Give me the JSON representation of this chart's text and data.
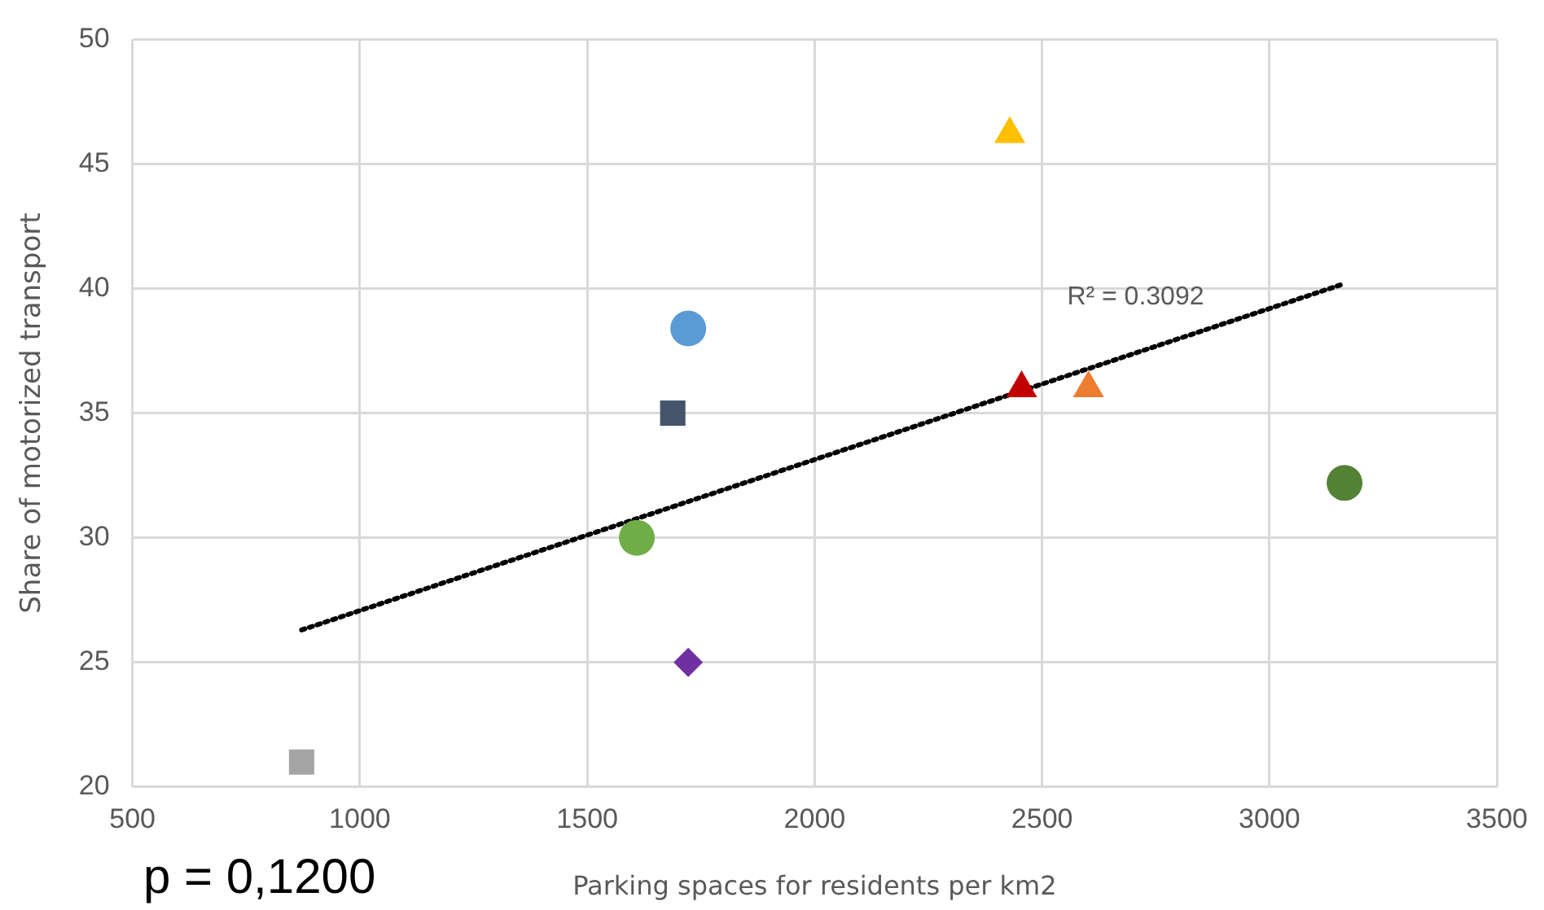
{
  "chart_data": {
    "type": "scatter",
    "xlabel": "Parking spaces for residents per km2",
    "ylabel": "Share of motorized transport",
    "xlim": [
      500,
      3500
    ],
    "xticks": [
      500,
      1000,
      1500,
      2000,
      2500,
      3000,
      3500
    ],
    "ylim": [
      20,
      50
    ],
    "yticks": [
      20,
      25,
      30,
      35,
      40,
      45,
      50
    ],
    "grid": true,
    "legend": false,
    "series": [
      {
        "color": "#a5a5a5",
        "marker": "square",
        "x": [
          872
        ],
        "values": [
          21
        ]
      },
      {
        "color": "#7030a0",
        "marker": "diamond",
        "x": [
          1722
        ],
        "values": [
          25
        ]
      },
      {
        "color": "#70ad47",
        "marker": "circle",
        "x": [
          1609
        ],
        "values": [
          30
        ]
      },
      {
        "color": "#44546a",
        "marker": "square",
        "x": [
          1688
        ],
        "values": [
          35
        ]
      },
      {
        "color": "#5b9bd5",
        "marker": "circle",
        "x": [
          1722
        ],
        "values": [
          38.4
        ]
      },
      {
        "color": "#ffc000",
        "marker": "triangle",
        "x": [
          2429
        ],
        "values": [
          46.2
        ]
      },
      {
        "color": "#c00000",
        "marker": "triangle",
        "x": [
          2455
        ],
        "values": [
          36
        ]
      },
      {
        "color": "#ed7d31",
        "marker": "triangle",
        "x": [
          2602
        ],
        "values": [
          36
        ]
      },
      {
        "color": "#548235",
        "marker": "circle",
        "x": [
          3165
        ],
        "values": [
          32.2
        ]
      },
      {
        "type": "line",
        "color": "#000000",
        "marker": "none",
        "line_style": "dotted",
        "x": [
          872,
          3165
        ],
        "values": [
          26.3,
          40.2
        ]
      }
    ],
    "annotations": [
      "R² = 0.3092",
      "p = 0,1200"
    ]
  }
}
